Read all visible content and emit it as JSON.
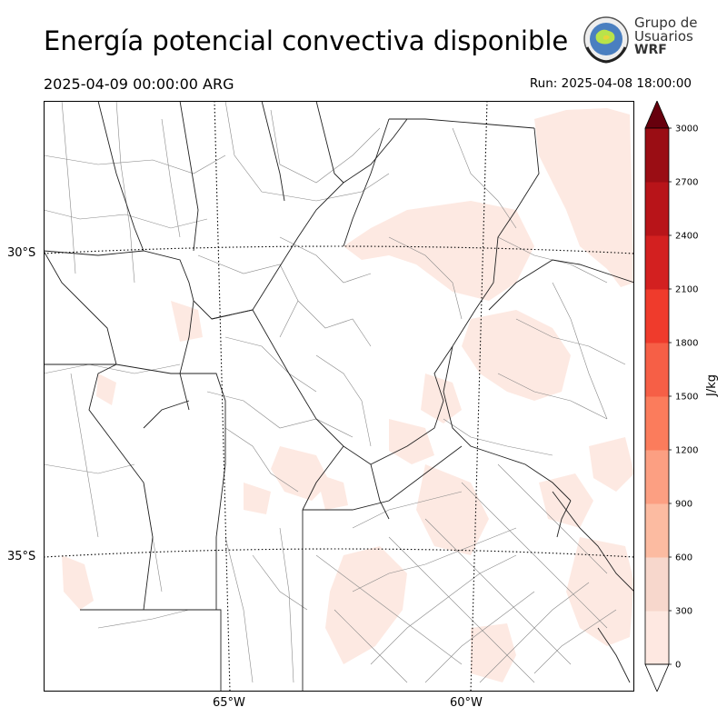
{
  "header": {
    "title": "Energía potencial convectiva disponible",
    "valid_time": "2025-04-09 00:00:00 ARG",
    "run_time": "Run: 2025-04-08 18:00:00"
  },
  "logo": {
    "line1": "Grupo de",
    "line2": "Usuarios",
    "line3": "WRF"
  },
  "map": {
    "lat_labels": [
      "30°S",
      "35°S"
    ],
    "lon_labels": [
      "65°W",
      "60°W"
    ],
    "gridlines": "dotted",
    "field_color": "#fde9e2"
  },
  "colorbar": {
    "label": "J/kg",
    "ticks": [
      "0",
      "300",
      "600",
      "900",
      "1200",
      "1500",
      "1800",
      "2100",
      "2400",
      "2700",
      "3000"
    ],
    "colors": [
      "#fee8e1",
      "#f7d7cc",
      "#fcbba1",
      "#fc9f82",
      "#fb7c5c",
      "#f65f46",
      "#ef3b2c",
      "#d32020",
      "#b81419",
      "#9a0d14",
      "#67000d"
    ],
    "extend": "both"
  }
}
